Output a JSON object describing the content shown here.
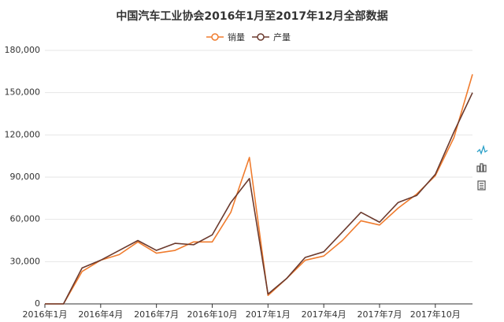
{
  "chart_data": {
    "type": "line",
    "title": "中国汽车工业协会2016年1月至2017年12月全部数据",
    "categories": [
      "2016年1月",
      null,
      null,
      "2016年4月",
      null,
      null,
      "2016年7月",
      null,
      null,
      "2016年10月",
      null,
      null,
      "2017年1月",
      null,
      null,
      "2017年4月",
      null,
      null,
      "2017年7月",
      null,
      null,
      "2017年10月",
      null,
      null
    ],
    "series": [
      {
        "name": "销量",
        "color": "#f07c2e",
        "values": [
          0,
          0,
          23000,
          31000,
          35000,
          44000,
          36000,
          38000,
          44000,
          44000,
          65000,
          104000,
          6000,
          18000,
          31000,
          34000,
          45000,
          59000,
          56000,
          68000,
          78000,
          91000,
          118000,
          163000
        ]
      },
      {
        "name": "产量",
        "color": "#6b3a2e",
        "values": [
          0,
          0,
          25500,
          31000,
          38000,
          45000,
          38000,
          43000,
          42000,
          49000,
          72000,
          89000,
          7000,
          18000,
          33000,
          37000,
          51000,
          65000,
          58000,
          72000,
          77000,
          92000,
          122000,
          150000
        ]
      }
    ],
    "ylim": [
      0,
      180000
    ],
    "yticks": [
      0,
      {
        "value": 30000,
        "label": "30,000"
      },
      {
        "value": 60000,
        "label": "60,000"
      },
      {
        "value": 90000,
        "label": "90,000"
      },
      {
        "value": 120000,
        "label": "120,000"
      },
      {
        "value": 150000,
        "label": "150,000"
      },
      {
        "value": 180000,
        "label": "180,000"
      }
    ],
    "grid": true
  }
}
